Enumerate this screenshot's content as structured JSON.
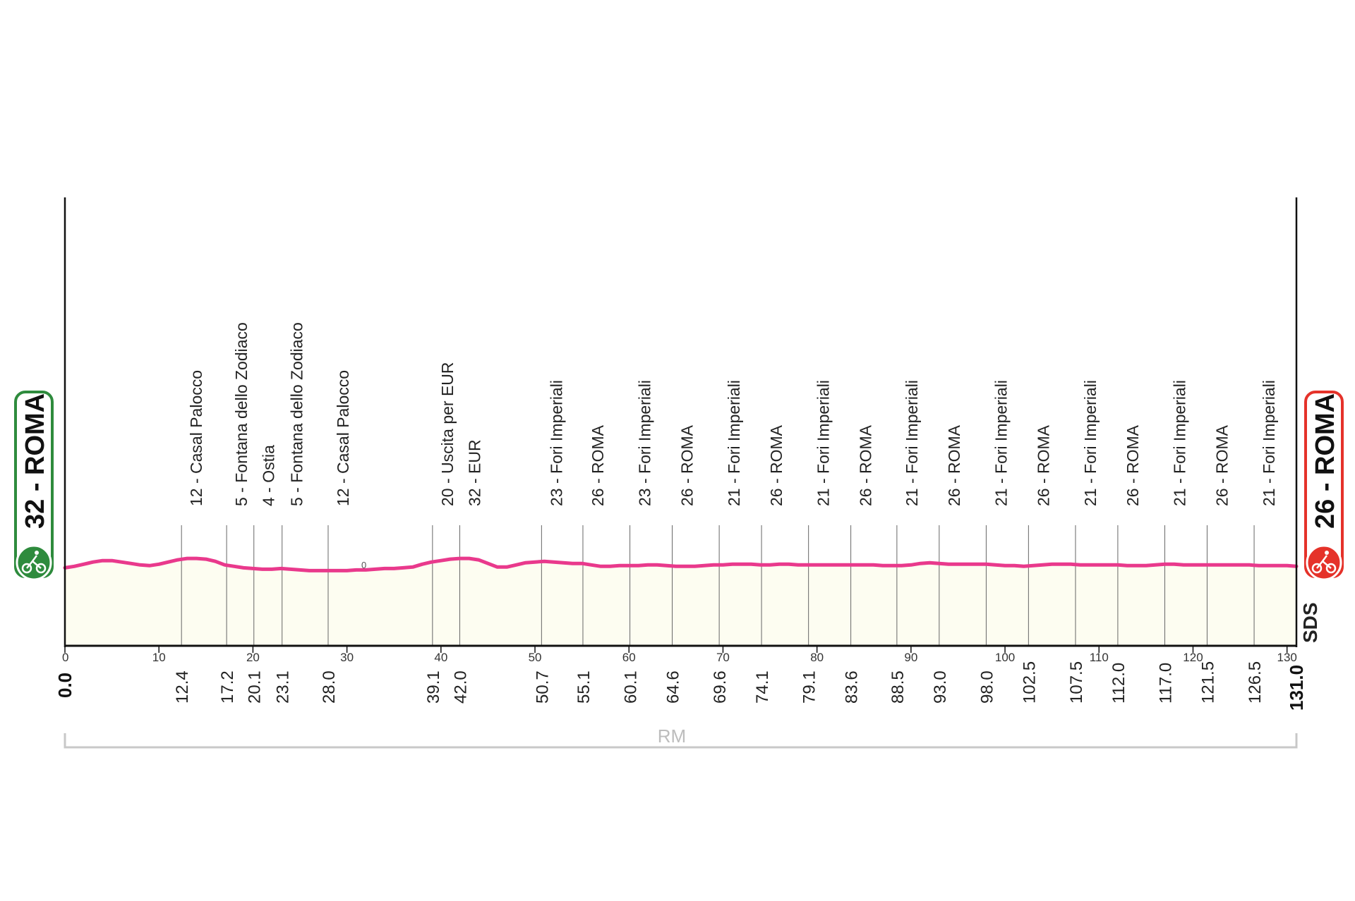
{
  "chart_data": {
    "type": "line",
    "series": [
      {
        "values": [
          [
            0,
            32
          ],
          [
            1,
            34
          ],
          [
            2,
            37
          ],
          [
            3,
            40
          ],
          [
            4,
            42
          ],
          [
            5,
            42
          ],
          [
            6,
            40
          ],
          [
            7,
            38
          ],
          [
            8,
            36
          ],
          [
            9,
            35
          ],
          [
            10,
            37
          ],
          [
            11,
            40
          ],
          [
            12,
            43
          ],
          [
            13,
            45
          ],
          [
            14,
            45
          ],
          [
            15,
            44
          ],
          [
            16,
            41
          ],
          [
            17,
            36
          ],
          [
            18,
            34
          ],
          [
            19,
            32
          ],
          [
            20,
            31
          ],
          [
            21,
            30
          ],
          [
            22,
            30
          ],
          [
            23,
            31
          ],
          [
            24,
            30
          ],
          [
            25,
            29
          ],
          [
            26,
            28
          ],
          [
            27,
            28
          ],
          [
            28,
            28
          ],
          [
            29,
            28
          ],
          [
            30,
            28
          ],
          [
            31,
            29
          ],
          [
            32,
            29
          ],
          [
            33,
            30
          ],
          [
            34,
            31
          ],
          [
            35,
            31
          ],
          [
            36,
            32
          ],
          [
            37,
            33
          ],
          [
            38,
            37
          ],
          [
            39,
            40
          ],
          [
            40,
            42
          ],
          [
            41,
            44
          ],
          [
            42,
            45
          ],
          [
            43,
            45
          ],
          [
            44,
            43
          ],
          [
            45,
            38
          ],
          [
            46,
            33
          ],
          [
            47,
            33
          ],
          [
            48,
            36
          ],
          [
            49,
            39
          ],
          [
            50,
            40
          ],
          [
            51,
            41
          ],
          [
            52,
            40
          ],
          [
            53,
            39
          ],
          [
            54,
            38
          ],
          [
            55,
            38
          ],
          [
            56,
            36
          ],
          [
            57,
            34
          ],
          [
            58,
            34
          ],
          [
            59,
            35
          ],
          [
            60,
            35
          ],
          [
            61,
            35
          ],
          [
            62,
            36
          ],
          [
            63,
            36
          ],
          [
            64,
            35
          ],
          [
            65,
            34
          ],
          [
            66,
            34
          ],
          [
            67,
            34
          ],
          [
            68,
            35
          ],
          [
            69,
            36
          ],
          [
            70,
            36
          ],
          [
            71,
            37
          ],
          [
            72,
            37
          ],
          [
            73,
            37
          ],
          [
            74,
            36
          ],
          [
            75,
            36
          ],
          [
            76,
            37
          ],
          [
            77,
            37
          ],
          [
            78,
            36
          ],
          [
            79,
            36
          ],
          [
            80,
            36
          ],
          [
            81,
            36
          ],
          [
            82,
            36
          ],
          [
            83,
            36
          ],
          [
            84,
            36
          ],
          [
            85,
            36
          ],
          [
            86,
            36
          ],
          [
            87,
            35
          ],
          [
            88,
            35
          ],
          [
            89,
            35
          ],
          [
            90,
            36
          ],
          [
            91,
            38
          ],
          [
            92,
            39
          ],
          [
            93,
            38
          ],
          [
            94,
            37
          ],
          [
            95,
            37
          ],
          [
            96,
            37
          ],
          [
            97,
            37
          ],
          [
            98,
            37
          ],
          [
            99,
            36
          ],
          [
            100,
            35
          ],
          [
            101,
            35
          ],
          [
            102,
            34
          ],
          [
            103,
            35
          ],
          [
            104,
            36
          ],
          [
            105,
            37
          ],
          [
            106,
            37
          ],
          [
            107,
            37
          ],
          [
            108,
            36
          ],
          [
            109,
            36
          ],
          [
            110,
            36
          ],
          [
            111,
            36
          ],
          [
            112,
            36
          ],
          [
            113,
            35
          ],
          [
            114,
            35
          ],
          [
            115,
            35
          ],
          [
            116,
            36
          ],
          [
            117,
            37
          ],
          [
            118,
            37
          ],
          [
            119,
            36
          ],
          [
            120,
            36
          ],
          [
            121,
            36
          ],
          [
            122,
            36
          ],
          [
            123,
            36
          ],
          [
            124,
            36
          ],
          [
            125,
            36
          ],
          [
            126,
            36
          ],
          [
            127,
            35
          ],
          [
            128,
            35
          ],
          [
            129,
            35
          ],
          [
            130,
            35
          ],
          [
            131,
            34
          ]
        ]
      }
    ],
    "xlim": [
      0,
      131
    ],
    "x_ticks": [
      "0",
      "10",
      "20",
      "30",
      "40",
      "50",
      "60",
      "70",
      "80",
      "90",
      "100",
      "110",
      "120",
      "130"
    ],
    "waypoints": [
      {
        "label": "12 - Casal Palocco",
        "km": "12.4"
      },
      {
        "label": "5 - Fontana dello Zodiaco",
        "km": "17.2"
      },
      {
        "label": "4 - Ostia",
        "km": "20.1"
      },
      {
        "label": "5 - Fontana dello Zodiaco",
        "km": "23.1"
      },
      {
        "label": "12 - Casal Palocco",
        "km": "28.0"
      },
      {
        "label": "20 - Uscita per EUR",
        "km": "39.1"
      },
      {
        "label": "32 - EUR",
        "km": "42.0"
      },
      {
        "label": "23 - Fori Imperiali",
        "km": "50.7"
      },
      {
        "label": "26 - ROMA",
        "km": "55.1"
      },
      {
        "label": "23 - Fori Imperiali",
        "km": "60.1"
      },
      {
        "label": "26 - ROMA",
        "km": "64.6"
      },
      {
        "label": "21 - Fori Imperiali",
        "km": "69.6"
      },
      {
        "label": "26 - ROMA",
        "km": "74.1"
      },
      {
        "label": "21 - Fori Imperiali",
        "km": "79.1"
      },
      {
        "label": "26 - ROMA",
        "km": "83.6"
      },
      {
        "label": "21 - Fori Imperiali",
        "km": "88.5"
      },
      {
        "label": "26 - ROMA",
        "km": "93.0"
      },
      {
        "label": "21 - Fori Imperiali",
        "km": "98.0"
      },
      {
        "label": "26 - ROMA",
        "km": "102.5"
      },
      {
        "label": "21 - Fori Imperiali",
        "km": "107.5"
      },
      {
        "label": "26 - ROMA",
        "km": "112.0"
      },
      {
        "label": "21 - Fori Imperiali",
        "km": "117.0"
      },
      {
        "label": "26 - ROMA",
        "km": "121.5"
      },
      {
        "label": "21 - Fori Imperiali",
        "km": "126.5"
      }
    ],
    "start": {
      "label": "32 - ROMA",
      "km": "0.0"
    },
    "finish": {
      "label": "26 - ROMA",
      "km": "131.0"
    },
    "region": "RM",
    "altitude_mark": "0",
    "brand": "SDS",
    "colors": {
      "profile_line": "#e9398c",
      "area_fill": "#fdfdf1",
      "start_badge": "#2e8b3d",
      "finish_badge": "#e5322a"
    }
  }
}
